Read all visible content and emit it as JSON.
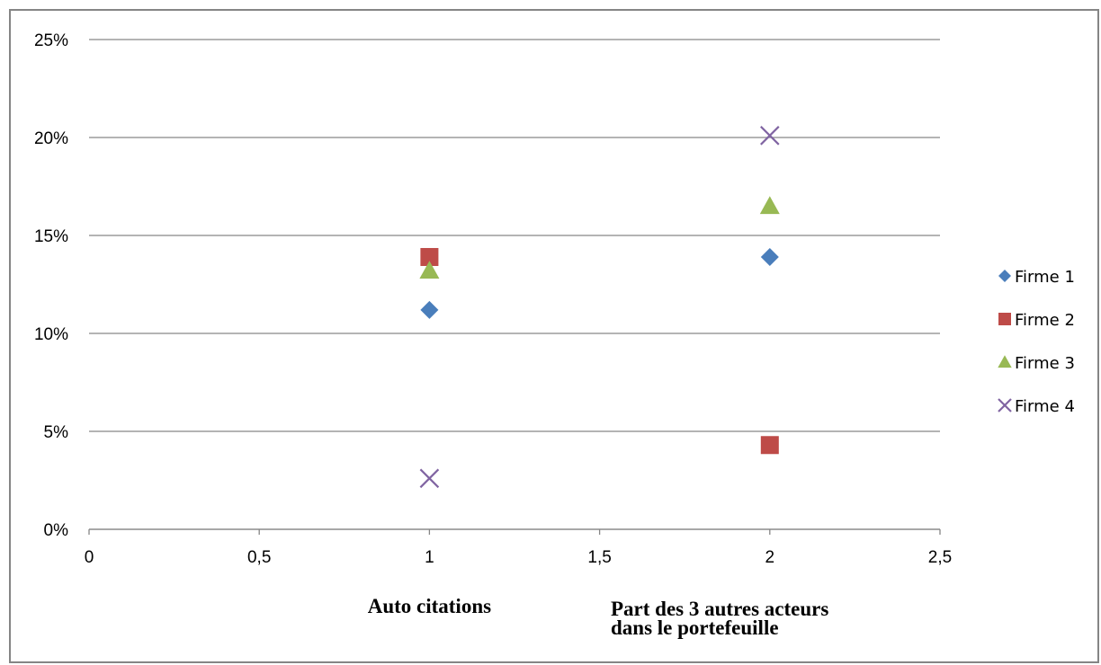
{
  "chart_data": {
    "type": "scatter",
    "title": "",
    "xlabel": "",
    "ylabel": "",
    "xlim": [
      0,
      2.5
    ],
    "ylim": [
      0,
      0.25
    ],
    "x_ticks": [
      "0",
      "0,5",
      "1",
      "1,5",
      "2",
      "2,5"
    ],
    "y_ticks": [
      "0%",
      "5%",
      "10%",
      "15%",
      "20%",
      "25%"
    ],
    "grid": "horizontal",
    "legend_position": "right",
    "category_labels": [
      {
        "x": 1,
        "lines": [
          "Auto citations"
        ]
      },
      {
        "x": 2,
        "lines": [
          "Part des 3 autres acteurs",
          "dans le portefeuille"
        ]
      }
    ],
    "series": [
      {
        "name": "Firme 1",
        "marker": "diamond",
        "color": "#4A7EBB",
        "points": [
          {
            "x": 1,
            "y": 0.112
          },
          {
            "x": 2,
            "y": 0.139
          }
        ]
      },
      {
        "name": "Firme 2",
        "marker": "square",
        "color": "#BE4B48",
        "points": [
          {
            "x": 1,
            "y": 0.139
          },
          {
            "x": 2,
            "y": 0.043
          }
        ]
      },
      {
        "name": "Firme 3",
        "marker": "triangle",
        "color": "#98B954",
        "points": [
          {
            "x": 1,
            "y": 0.132
          },
          {
            "x": 2,
            "y": 0.165
          }
        ]
      },
      {
        "name": "Firme 4",
        "marker": "x",
        "color": "#8064A2",
        "points": [
          {
            "x": 1,
            "y": 0.026
          },
          {
            "x": 2,
            "y": 0.201
          }
        ]
      }
    ]
  }
}
